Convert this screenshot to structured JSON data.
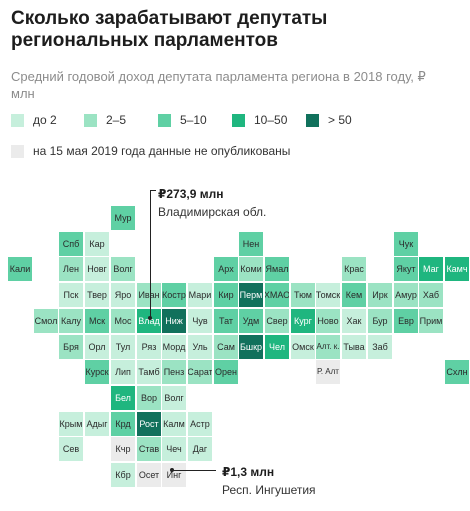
{
  "title": "Сколько зарабатывают депутаты региональных парламентов",
  "subtitle": "Средний годовой доход депутата парламента региона в 2018 году, ₽ млн",
  "legend": [
    {
      "label": "до 2",
      "color": "#c6efdc"
    },
    {
      "label": "2–5",
      "color": "#9be3c3"
    },
    {
      "label": "5–10",
      "color": "#5fd0a4"
    },
    {
      "label": "10–50",
      "color": "#1fb67f"
    },
    {
      "label": "> 50",
      "color": "#11715c"
    },
    {
      "label": "на 15 мая 2019 года данные не опубликованы",
      "color": "#ebebeb"
    }
  ],
  "regions": [
    {
      "name": "Мур",
      "col": 4,
      "row": 0,
      "c": 3
    },
    {
      "name": "Спб",
      "col": 2,
      "row": 1,
      "c": 3
    },
    {
      "name": "Кар",
      "col": 3,
      "row": 1,
      "c": 1
    },
    {
      "name": "Нен",
      "col": 9,
      "row": 1,
      "c": 3
    },
    {
      "name": "Чук",
      "col": 15,
      "row": 1,
      "c": 3
    },
    {
      "name": "Кали",
      "col": 0,
      "row": 2,
      "c": 3
    },
    {
      "name": "Лен",
      "col": 2,
      "row": 2,
      "c": 2
    },
    {
      "name": "Новг",
      "col": 3,
      "row": 2,
      "c": 1
    },
    {
      "name": "Волг",
      "col": 4,
      "row": 2,
      "c": 2
    },
    {
      "name": "Арх",
      "col": 8,
      "row": 2,
      "c": 3
    },
    {
      "name": "Коми",
      "col": 9,
      "row": 2,
      "c": 2
    },
    {
      "name": "Ямал",
      "col": 10,
      "row": 2,
      "c": 3
    },
    {
      "name": "Крас",
      "col": 13,
      "row": 2,
      "c": 2
    },
    {
      "name": "Якут",
      "col": 15,
      "row": 2,
      "c": 3
    },
    {
      "name": "Маг",
      "col": 16,
      "row": 2,
      "c": 4
    },
    {
      "name": "Камч",
      "col": 17,
      "row": 2,
      "c": 4
    },
    {
      "name": "Пск",
      "col": 2,
      "row": 3,
      "c": 1
    },
    {
      "name": "Твер",
      "col": 3,
      "row": 3,
      "c": 1
    },
    {
      "name": "Яро",
      "col": 4,
      "row": 3,
      "c": 1
    },
    {
      "name": "Иван",
      "col": 5,
      "row": 3,
      "c": 2
    },
    {
      "name": "Костр",
      "col": 6,
      "row": 3,
      "c": 3
    },
    {
      "name": "Мари",
      "col": 7,
      "row": 3,
      "c": 1
    },
    {
      "name": "Кир",
      "col": 8,
      "row": 3,
      "c": 3
    },
    {
      "name": "Перм",
      "col": 9,
      "row": 3,
      "c": 5
    },
    {
      "name": "ХМАО",
      "col": 10,
      "row": 3,
      "c": 3
    },
    {
      "name": "Тюм",
      "col": 11,
      "row": 3,
      "c": 2
    },
    {
      "name": "Томск",
      "col": 12,
      "row": 3,
      "c": 1
    },
    {
      "name": "Кем",
      "col": 13,
      "row": 3,
      "c": 3
    },
    {
      "name": "Ирк",
      "col": 14,
      "row": 3,
      "c": 2
    },
    {
      "name": "Амур",
      "col": 15,
      "row": 3,
      "c": 2
    },
    {
      "name": "Хаб",
      "col": 16,
      "row": 3,
      "c": 2
    },
    {
      "name": "Смол",
      "col": 1,
      "row": 4,
      "c": 2
    },
    {
      "name": "Калу",
      "col": 2,
      "row": 4,
      "c": 2
    },
    {
      "name": "Мск",
      "col": 3,
      "row": 4,
      "c": 3
    },
    {
      "name": "Мос",
      "col": 4,
      "row": 4,
      "c": 2
    },
    {
      "name": "Влад",
      "col": 5,
      "row": 4,
      "c": 4
    },
    {
      "name": "Ниж",
      "col": 6,
      "row": 4,
      "c": 5
    },
    {
      "name": "Чув",
      "col": 7,
      "row": 4,
      "c": 1
    },
    {
      "name": "Тат",
      "col": 8,
      "row": 4,
      "c": 3
    },
    {
      "name": "Удм",
      "col": 9,
      "row": 4,
      "c": 3
    },
    {
      "name": "Свер",
      "col": 10,
      "row": 4,
      "c": 2
    },
    {
      "name": "Кург",
      "col": 11,
      "row": 4,
      "c": 4
    },
    {
      "name": "Ново",
      "col": 12,
      "row": 4,
      "c": 2
    },
    {
      "name": "Хак",
      "col": 13,
      "row": 4,
      "c": 1
    },
    {
      "name": "Бур",
      "col": 14,
      "row": 4,
      "c": 2
    },
    {
      "name": "Евр",
      "col": 15,
      "row": 4,
      "c": 3
    },
    {
      "name": "Прим",
      "col": 16,
      "row": 4,
      "c": 2
    },
    {
      "name": "Бря",
      "col": 2,
      "row": 5,
      "c": 2
    },
    {
      "name": "Орл",
      "col": 3,
      "row": 5,
      "c": 1
    },
    {
      "name": "Тул",
      "col": 4,
      "row": 5,
      "c": 1
    },
    {
      "name": "Ряз",
      "col": 5,
      "row": 5,
      "c": 1
    },
    {
      "name": "Морд",
      "col": 6,
      "row": 5,
      "c": 1
    },
    {
      "name": "Уль",
      "col": 7,
      "row": 5,
      "c": 1
    },
    {
      "name": "Сам",
      "col": 8,
      "row": 5,
      "c": 2
    },
    {
      "name": "Бшкр",
      "col": 9,
      "row": 5,
      "c": 5
    },
    {
      "name": "Чел",
      "col": 10,
      "row": 5,
      "c": 4
    },
    {
      "name": "Омск",
      "col": 11,
      "row": 5,
      "c": 1
    },
    {
      "name": "Алт. к.",
      "col": 12,
      "row": 5,
      "c": 2
    },
    {
      "name": "Тыва",
      "col": 13,
      "row": 5,
      "c": 1
    },
    {
      "name": "Заб",
      "col": 14,
      "row": 5,
      "c": 1
    },
    {
      "name": "Курск",
      "col": 3,
      "row": 6,
      "c": 3
    },
    {
      "name": "Лип",
      "col": 4,
      "row": 6,
      "c": 1
    },
    {
      "name": "Тамб",
      "col": 5,
      "row": 6,
      "c": 1
    },
    {
      "name": "Пенз",
      "col": 6,
      "row": 6,
      "c": 2
    },
    {
      "name": "Сарат",
      "col": 7,
      "row": 6,
      "c": 2
    },
    {
      "name": "Орен",
      "col": 8,
      "row": 6,
      "c": 3
    },
    {
      "name": "Р. Алт",
      "col": 12,
      "row": 6,
      "c": 0
    },
    {
      "name": "Схлн",
      "col": 17,
      "row": 6,
      "c": 3
    },
    {
      "name": "Бел",
      "col": 4,
      "row": 7,
      "c": 4
    },
    {
      "name": "Вор",
      "col": 5,
      "row": 7,
      "c": 2
    },
    {
      "name": "Волг",
      "col": 6,
      "row": 7,
      "c": 1
    },
    {
      "name": "Крым",
      "col": 2,
      "row": 8,
      "c": 1
    },
    {
      "name": "Адыг",
      "col": 3,
      "row": 8,
      "c": 1
    },
    {
      "name": "Крд",
      "col": 4,
      "row": 8,
      "c": 3
    },
    {
      "name": "Рост",
      "col": 5,
      "row": 8,
      "c": 5
    },
    {
      "name": "Калм",
      "col": 6,
      "row": 8,
      "c": 1
    },
    {
      "name": "Астр",
      "col": 7,
      "row": 8,
      "c": 1
    },
    {
      "name": "Сев",
      "col": 2,
      "row": 9,
      "c": 1
    },
    {
      "name": "Кчр",
      "col": 4,
      "row": 9,
      "c": 0
    },
    {
      "name": "Став",
      "col": 5,
      "row": 9,
      "c": 2
    },
    {
      "name": "Чеч",
      "col": 6,
      "row": 9,
      "c": 1
    },
    {
      "name": "Даг",
      "col": 7,
      "row": 9,
      "c": 1
    },
    {
      "name": "Кбр",
      "col": 4,
      "row": 10,
      "c": 1
    },
    {
      "name": "Осет",
      "col": 5,
      "row": 10,
      "c": 0
    },
    {
      "name": "Инг",
      "col": 6,
      "row": 10,
      "c": 0
    }
  ],
  "annotations": {
    "top": {
      "value": "₽273,9 млн",
      "label": "Владимирская обл."
    },
    "bottom": {
      "value": "₽1,3 млн",
      "label": "Респ. Ингушетия"
    }
  }
}
